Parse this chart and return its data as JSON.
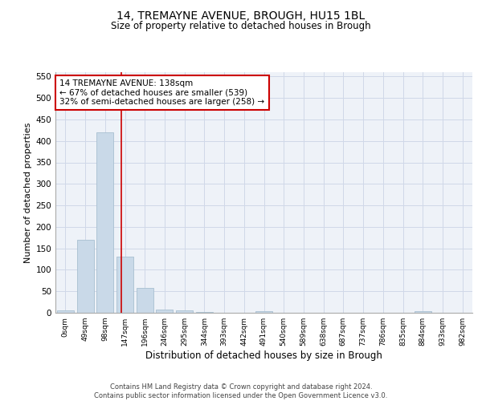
{
  "title1": "14, TREMAYNE AVENUE, BROUGH, HU15 1BL",
  "title2": "Size of property relative to detached houses in Brough",
  "xlabel": "Distribution of detached houses by size in Brough",
  "ylabel": "Number of detached properties",
  "bin_labels": [
    "0sqm",
    "49sqm",
    "98sqm",
    "147sqm",
    "196sqm",
    "246sqm",
    "295sqm",
    "344sqm",
    "393sqm",
    "442sqm",
    "491sqm",
    "540sqm",
    "589sqm",
    "638sqm",
    "687sqm",
    "737sqm",
    "786sqm",
    "835sqm",
    "884sqm",
    "933sqm",
    "982sqm"
  ],
  "bar_values": [
    5,
    170,
    420,
    130,
    57,
    8,
    5,
    2,
    0,
    0,
    3,
    0,
    0,
    0,
    0,
    0,
    0,
    0,
    4,
    0,
    0
  ],
  "bar_color": "#c9d9e8",
  "bar_edge_color": "#a8bfd0",
  "grid_color": "#d0d8e8",
  "background_color": "#eef2f8",
  "red_line_color": "#cc0000",
  "annotation_line1": "14 TREMAYNE AVENUE: 138sqm",
  "annotation_line2": "← 67% of detached houses are smaller (539)",
  "annotation_line3": "32% of semi-detached houses are larger (258) →",
  "annotation_box_color": "white",
  "annotation_box_edge": "#cc0000",
  "footer_text": "Contains HM Land Registry data © Crown copyright and database right 2024.\nContains public sector information licensed under the Open Government Licence v3.0.",
  "ylim": [
    0,
    560
  ],
  "yticks": [
    0,
    50,
    100,
    150,
    200,
    250,
    300,
    350,
    400,
    450,
    500,
    550
  ],
  "red_line_x": 2.82,
  "title1_fontsize": 10,
  "title2_fontsize": 8.5,
  "bar_width": 0.85
}
